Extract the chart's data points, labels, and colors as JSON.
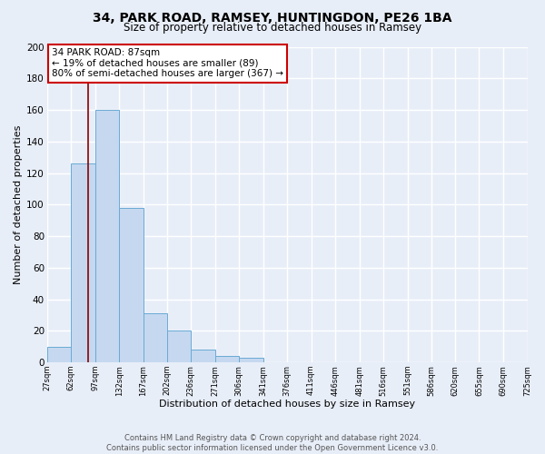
{
  "title": "34, PARK ROAD, RAMSEY, HUNTINGDON, PE26 1BA",
  "subtitle": "Size of property relative to detached houses in Ramsey",
  "xlabel": "Distribution of detached houses by size in Ramsey",
  "ylabel": "Number of detached properties",
  "bar_edges": [
    27,
    62,
    97,
    132,
    167,
    202,
    236,
    271,
    306,
    341,
    376,
    411,
    446,
    481,
    516,
    551,
    586,
    620,
    655,
    690,
    725
  ],
  "bar_heights": [
    10,
    126,
    160,
    98,
    31,
    20,
    8,
    4,
    3,
    0,
    0,
    0,
    0,
    0,
    0,
    0,
    0,
    0,
    0,
    0
  ],
  "bar_color": "#c5d8f0",
  "bar_edge_color": "#6aaad4",
  "property_line_x": 87,
  "property_line_color": "#8b0000",
  "annotation_title": "34 PARK ROAD: 87sqm",
  "annotation_line1": "← 19% of detached houses are smaller (89)",
  "annotation_line2": "80% of semi-detached houses are larger (367) →",
  "annotation_box_color": "white",
  "annotation_box_edge_color": "#cc0000",
  "ylim": [
    0,
    200
  ],
  "yticks": [
    0,
    20,
    40,
    60,
    80,
    100,
    120,
    140,
    160,
    180,
    200
  ],
  "tick_labels": [
    "27sqm",
    "62sqm",
    "97sqm",
    "132sqm",
    "167sqm",
    "202sqm",
    "236sqm",
    "271sqm",
    "306sqm",
    "341sqm",
    "376sqm",
    "411sqm",
    "446sqm",
    "481sqm",
    "516sqm",
    "551sqm",
    "586sqm",
    "620sqm",
    "655sqm",
    "690sqm",
    "725sqm"
  ],
  "bg_color": "#e8eef8",
  "grid_color": "white",
  "footer_line1": "Contains HM Land Registry data © Crown copyright and database right 2024.",
  "footer_line2": "Contains public sector information licensed under the Open Government Licence v3.0."
}
